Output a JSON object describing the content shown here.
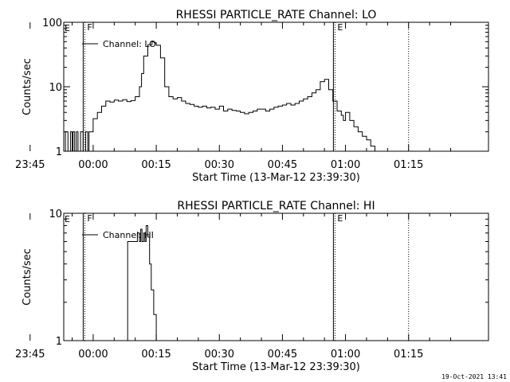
{
  "footer_stamp": "19-Oct-2021 13:41",
  "chart_data": [
    {
      "type": "line",
      "title": "RHESSI PARTICLE_RATE Channel: LO",
      "xlabel": "Start Time (13-Mar-12 23:39:30)",
      "ylabel": "Counts/sec",
      "y_scale": "log",
      "ylim": [
        1,
        100
      ],
      "y_tick_labels": [
        "1",
        "10",
        "100"
      ],
      "x_range_minutes": [
        -7,
        94
      ],
      "x_ticks": [
        {
          "label": "23:45",
          "min": -15
        },
        {
          "label": "00:00",
          "min": 0
        },
        {
          "label": "00:15",
          "min": 15
        },
        {
          "label": "00:30",
          "min": 30
        },
        {
          "label": "00:45",
          "min": 45
        },
        {
          "label": "01:00",
          "min": 60
        },
        {
          "label": "01:15",
          "min": 75
        }
      ],
      "legend": "top-left",
      "series": [
        {
          "name": "Channel: LO",
          "x": [
            -21,
            -20.6,
            -20.2,
            -19,
            -13,
            -12.6,
            -12.2,
            -11,
            -10.4,
            -9.8,
            -9,
            -8.4,
            -7.8,
            -7.2,
            -6.6,
            -6,
            -5.4,
            -5,
            -4.8,
            -4.4,
            -4,
            -3.6,
            -3,
            -2.4,
            -1.8,
            -1.3,
            -1,
            0,
            1,
            2,
            3,
            4,
            5,
            6,
            7,
            8,
            9,
            10,
            11,
            11.5,
            12,
            13,
            14,
            14.5,
            15,
            16,
            17,
            18,
            19,
            20,
            21,
            22,
            23,
            24,
            25,
            26,
            27,
            28,
            29,
            30,
            31,
            32,
            33,
            34,
            35,
            36,
            37,
            38,
            39,
            40,
            41,
            42,
            43,
            44,
            45,
            46,
            47,
            48,
            49,
            50,
            51,
            52,
            53,
            54,
            55,
            56,
            57,
            58,
            59,
            59.5,
            60,
            61,
            62,
            63,
            64,
            65,
            66,
            67
          ],
          "y": [
            1,
            2,
            1,
            1,
            1,
            2,
            1,
            1,
            2,
            1,
            2,
            1,
            2,
            1,
            2,
            1,
            2,
            1,
            2,
            1,
            2,
            1,
            2,
            1,
            2,
            1,
            2,
            3.2,
            4,
            5,
            6,
            5.8,
            6.2,
            6,
            6.3,
            5.9,
            6.1,
            7,
            10,
            16,
            30,
            45,
            50,
            48,
            44,
            28,
            10,
            7,
            6.5,
            6.8,
            6,
            5.5,
            5.3,
            5,
            4.8,
            5,
            4.7,
            4.8,
            4.5,
            5,
            4.2,
            4.5,
            4.3,
            4.2,
            4,
            3.8,
            4,
            4.2,
            4.5,
            4.5,
            4.2,
            4.5,
            4.8,
            5,
            5.2,
            5.5,
            5.2,
            5.5,
            6,
            6.5,
            7,
            8,
            9,
            12,
            13,
            9,
            6,
            4.2,
            3.6,
            3,
            4,
            3,
            2.4,
            2,
            1.7,
            1.5,
            1.2,
            1
          ]
        }
      ],
      "markers": [
        {
          "label": "F",
          "min": -2.0,
          "style": "dotted-solid"
        },
        {
          "label": "E",
          "min": 57.5,
          "style": "dotted-solid"
        },
        {
          "label": "",
          "min": 75,
          "style": "dotted"
        }
      ],
      "left_corner_label": "E"
    },
    {
      "type": "line",
      "title": "RHESSI PARTICLE_RATE Channel: HI",
      "xlabel": "Start Time (13-Mar-12 23:39:30)",
      "ylabel": "Counts/sec",
      "y_scale": "log",
      "ylim": [
        1,
        10
      ],
      "y_tick_labels": [
        "1",
        "10"
      ],
      "x_range_minutes": [
        -7,
        94
      ],
      "x_ticks": [
        {
          "label": "23:45",
          "min": -15
        },
        {
          "label": "00:00",
          "min": 0
        },
        {
          "label": "00:15",
          "min": 15
        },
        {
          "label": "00:30",
          "min": 30
        },
        {
          "label": "00:45",
          "min": 45
        },
        {
          "label": "01:00",
          "min": 60
        },
        {
          "label": "01:15",
          "min": 75
        }
      ],
      "legend": "top-left",
      "series": [
        {
          "name": "Channel: HI",
          "x": [
            7.8,
            8.2,
            9.5,
            10,
            10.5,
            11,
            11.3,
            11.6,
            12,
            12.3,
            12.6,
            13,
            13.4,
            13.8,
            14.4,
            15
          ],
          "y": [
            1,
            6,
            6,
            6,
            7,
            6,
            7.5,
            6,
            7,
            6,
            8,
            6.5,
            4,
            2.5,
            1.6,
            1
          ],
          "gap_before": true
        }
      ],
      "markers": [
        {
          "label": "F",
          "min": -2.0,
          "style": "dotted-solid"
        },
        {
          "label": "E",
          "min": 57.5,
          "style": "dotted-solid"
        },
        {
          "label": "",
          "min": 75,
          "style": "dotted"
        }
      ],
      "left_corner_label": "E"
    }
  ]
}
